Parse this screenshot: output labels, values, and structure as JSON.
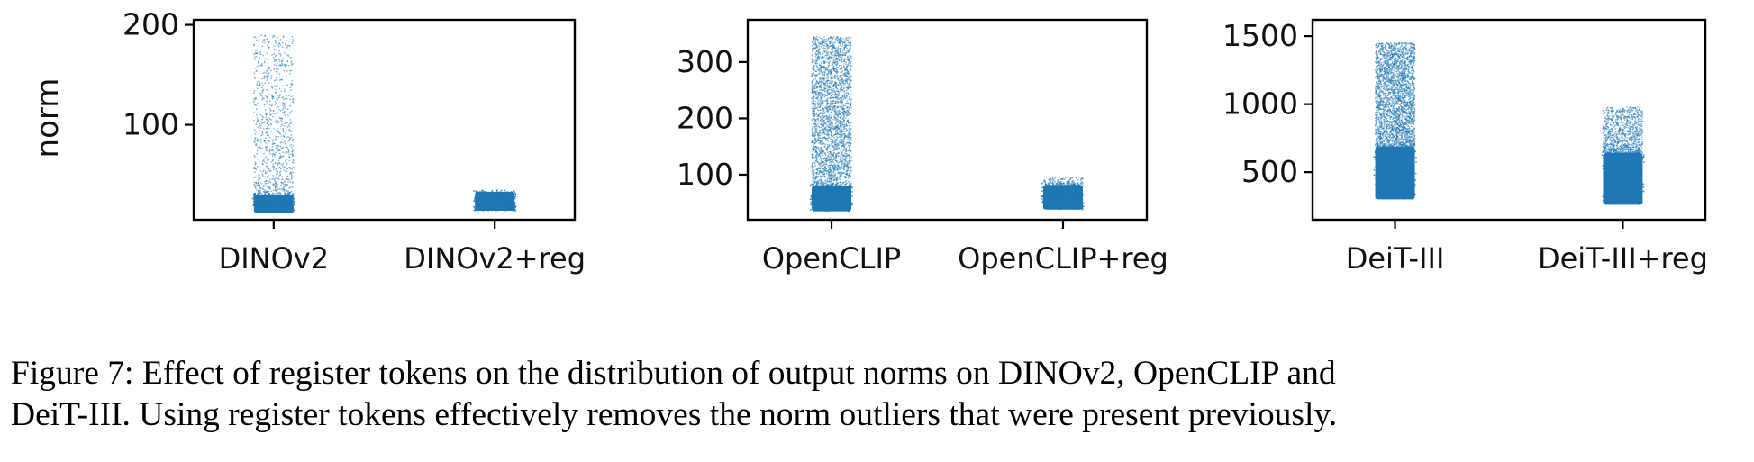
{
  "chart_data": [
    {
      "type": "scatter",
      "ylabel": "norm",
      "yticks": [
        100,
        200
      ],
      "ylim": [
        5,
        205
      ],
      "categories": [
        "DINOv2",
        "DINOv2+reg"
      ],
      "series": [
        {
          "category": "DINOv2",
          "dense_range": [
            12,
            30
          ],
          "sparse_range": [
            30,
            190
          ],
          "sparse_density": "medium"
        },
        {
          "category": "DINOv2+reg",
          "dense_range": [
            14,
            33
          ],
          "sparse_range": [
            33,
            35
          ],
          "sparse_density": "none"
        }
      ],
      "color": "#1f77b4"
    },
    {
      "type": "scatter",
      "ylabel": "",
      "yticks": [
        100,
        200,
        300
      ],
      "ylim": [
        20,
        375
      ],
      "categories": [
        "OpenCLIP",
        "OpenCLIP+reg"
      ],
      "series": [
        {
          "category": "OpenCLIP",
          "dense_range": [
            35,
            80
          ],
          "sparse_range": [
            80,
            345
          ],
          "sparse_density": "high"
        },
        {
          "category": "OpenCLIP+reg",
          "dense_range": [
            38,
            82
          ],
          "sparse_range": [
            82,
            95
          ],
          "sparse_density": "low"
        }
      ],
      "color": "#1f77b4"
    },
    {
      "type": "scatter",
      "ylabel": "",
      "yticks": [
        500,
        1000,
        1500
      ],
      "ylim": [
        150,
        1620
      ],
      "categories": [
        "DeiT-III",
        "DeiT-III+reg"
      ],
      "series": [
        {
          "category": "DeiT-III",
          "dense_range": [
            300,
            690
          ],
          "sparse_range": [
            690,
            1450
          ],
          "sparse_density": "high"
        },
        {
          "category": "DeiT-III+reg",
          "dense_range": [
            260,
            640
          ],
          "sparse_range": [
            640,
            980
          ],
          "sparse_density": "medium"
        }
      ],
      "color": "#1f77b4"
    }
  ],
  "caption": {
    "line1": "Figure 7: Effect of register tokens on the distribution of output norms on DINOv2, OpenCLIP and",
    "line2": "DeiT-III. Using register tokens effectively removes the norm outliers that were present previously."
  }
}
